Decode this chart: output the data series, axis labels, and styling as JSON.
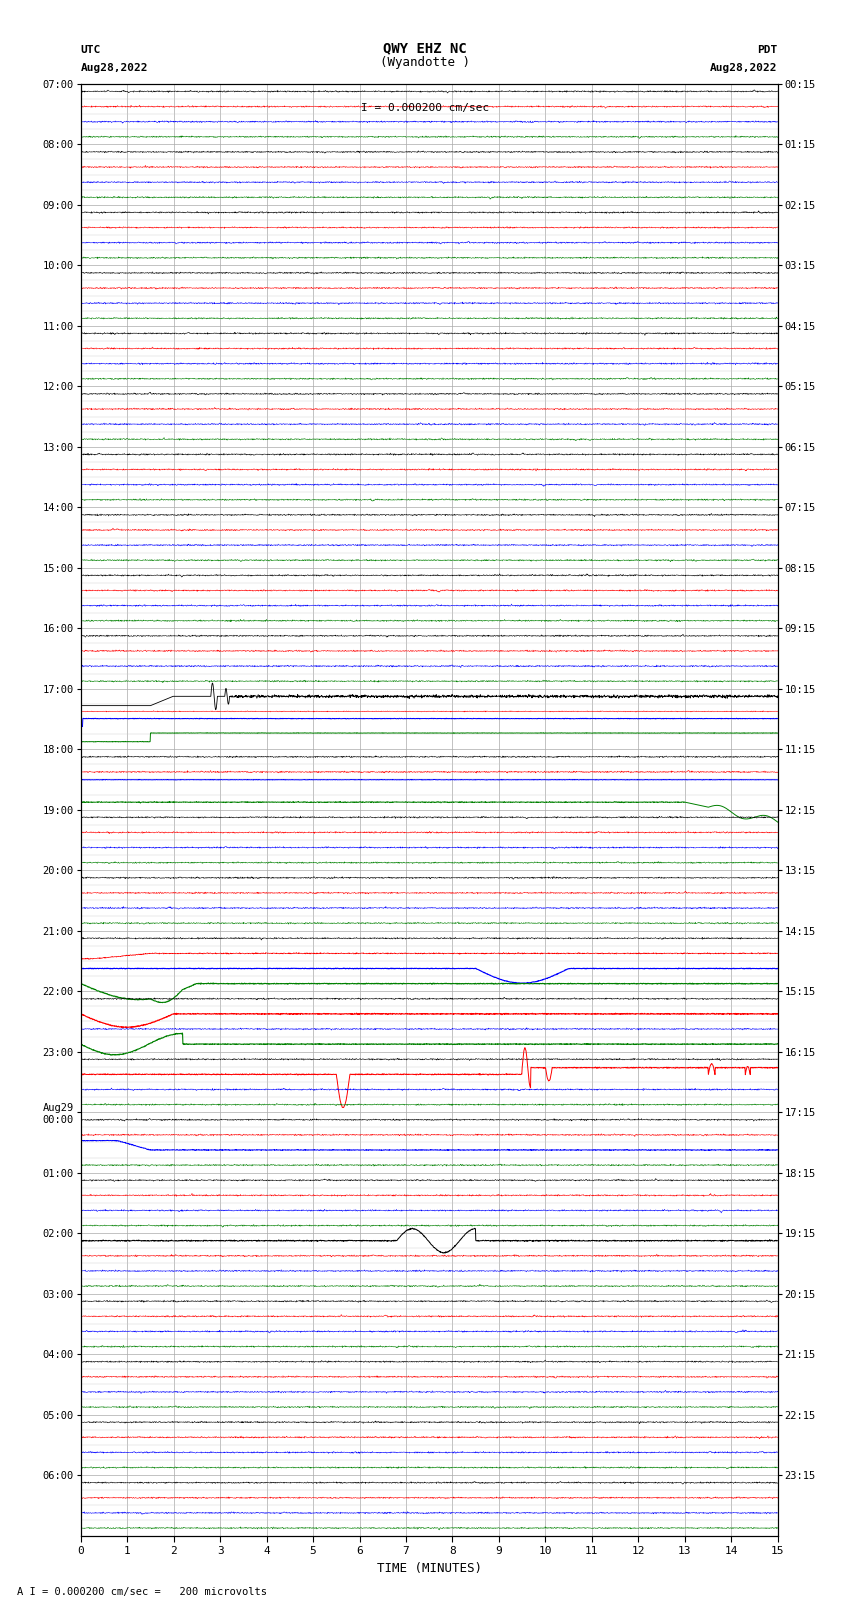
{
  "title_line1": "QWY EHZ NC",
  "title_line2": "(Wyandotte )",
  "title_scale": "I = 0.000200 cm/sec",
  "left_label": "UTC",
  "left_date": "Aug28,2022",
  "right_label": "PDT",
  "right_date": "Aug28,2022",
  "bottom_label": "TIME (MINUTES)",
  "footer_text": "A I = 0.000200 cm/sec =   200 microvolts",
  "utc_labels": [
    "07:00",
    "08:00",
    "09:00",
    "10:00",
    "11:00",
    "12:00",
    "13:00",
    "14:00",
    "15:00",
    "16:00",
    "17:00",
    "18:00",
    "19:00",
    "20:00",
    "21:00",
    "22:00",
    "23:00",
    "Aug29\n00:00",
    "01:00",
    "02:00",
    "03:00",
    "04:00",
    "05:00",
    "06:00"
  ],
  "pdt_labels": [
    "00:15",
    "01:15",
    "02:15",
    "03:15",
    "04:15",
    "05:15",
    "06:15",
    "07:15",
    "08:15",
    "09:15",
    "10:15",
    "11:15",
    "12:15",
    "13:15",
    "14:15",
    "15:15",
    "16:15",
    "17:15",
    "18:15",
    "19:15",
    "20:15",
    "21:15",
    "22:15",
    "23:15"
  ],
  "n_rows": 24,
  "n_traces_per_row": 4,
  "trace_colors": [
    "black",
    "red",
    "blue",
    "green"
  ],
  "xmin": 0,
  "xmax": 15,
  "bg_color": "#ffffff",
  "grid_color": "#aaaaaa",
  "fig_width": 8.5,
  "fig_height": 16.13,
  "dpi": 100
}
